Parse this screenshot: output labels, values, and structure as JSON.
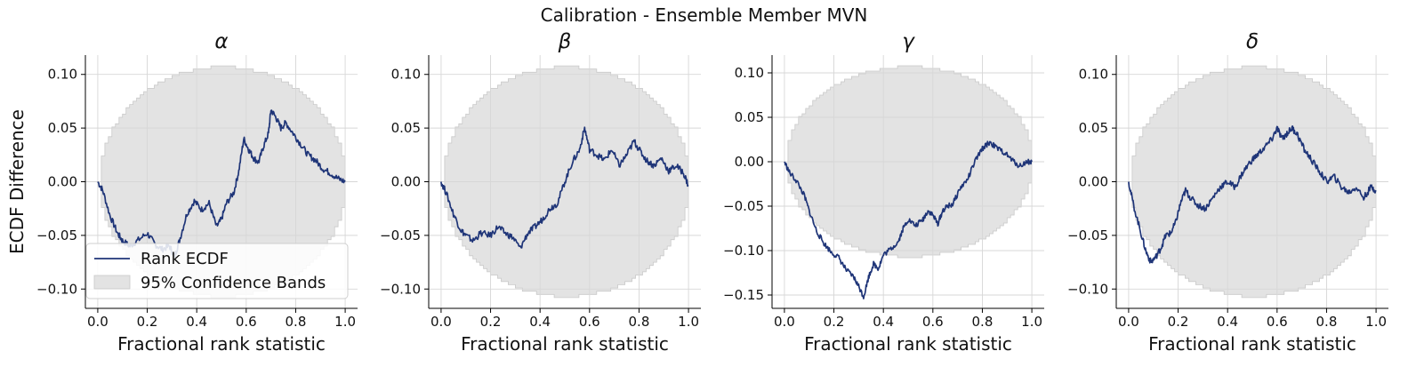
{
  "figure": {
    "suptitle": "Calibration - Ensemble Member MVN"
  },
  "colors": {
    "line": "#1f3578",
    "band": "#e3e3e3",
    "band_edge": "#c9c9c9",
    "grid": "#d7d7d7",
    "axis": "#000000"
  },
  "legend": {
    "line_label": "Rank ECDF",
    "band_label": "95% Confidence Bands"
  },
  "chart_data": [
    {
      "type": "line",
      "title": "α",
      "xlabel": "Fractional rank statistic",
      "ylabel": "ECDF Difference",
      "xlim": [
        -0.05,
        1.05
      ],
      "ylim": [
        -0.118,
        0.118
      ],
      "xticks": [
        0.0,
        0.2,
        0.4,
        0.6,
        0.8,
        1.0
      ],
      "yticks": [
        -0.1,
        -0.05,
        0.0,
        0.05,
        0.1
      ],
      "band_halfwidth_max": 0.107,
      "series": [
        {
          "name": "Rank ECDF",
          "x": [
            0.0,
            0.02,
            0.05,
            0.08,
            0.1,
            0.13,
            0.16,
            0.2,
            0.23,
            0.26,
            0.29,
            0.31,
            0.33,
            0.36,
            0.39,
            0.42,
            0.45,
            0.48,
            0.5,
            0.52,
            0.55,
            0.57,
            0.59,
            0.61,
            0.63,
            0.65,
            0.67,
            0.69,
            0.7,
            0.72,
            0.74,
            0.76,
            0.79,
            0.82,
            0.85,
            0.88,
            0.91,
            0.94,
            0.97,
            1.0
          ],
          "y": [
            0.0,
            -0.008,
            -0.032,
            -0.048,
            -0.055,
            -0.06,
            -0.055,
            -0.048,
            -0.058,
            -0.063,
            -0.06,
            -0.07,
            -0.055,
            -0.03,
            -0.018,
            -0.026,
            -0.02,
            -0.042,
            -0.035,
            -0.02,
            -0.01,
            0.01,
            0.04,
            0.03,
            0.022,
            0.018,
            0.033,
            0.045,
            0.067,
            0.06,
            0.05,
            0.055,
            0.045,
            0.035,
            0.025,
            0.02,
            0.012,
            0.008,
            0.003,
            0.0
          ]
        }
      ]
    },
    {
      "type": "line",
      "title": "β",
      "xlabel": "Fractional rank statistic",
      "ylabel": "",
      "xlim": [
        -0.05,
        1.05
      ],
      "ylim": [
        -0.118,
        0.118
      ],
      "xticks": [
        0.0,
        0.2,
        0.4,
        0.6,
        0.8,
        1.0
      ],
      "yticks": [
        -0.1,
        -0.05,
        0.0,
        0.05,
        0.1
      ],
      "band_halfwidth_max": 0.107,
      "series": [
        {
          "name": "Rank ECDF",
          "x": [
            0.0,
            0.02,
            0.05,
            0.08,
            0.1,
            0.13,
            0.16,
            0.2,
            0.23,
            0.26,
            0.29,
            0.32,
            0.35,
            0.38,
            0.41,
            0.44,
            0.47,
            0.5,
            0.53,
            0.56,
            0.58,
            0.6,
            0.63,
            0.66,
            0.69,
            0.72,
            0.75,
            0.78,
            0.8,
            0.83,
            0.86,
            0.89,
            0.92,
            0.95,
            0.98,
            1.0
          ],
          "y": [
            0.0,
            -0.01,
            -0.03,
            -0.045,
            -0.05,
            -0.055,
            -0.048,
            -0.05,
            -0.042,
            -0.048,
            -0.052,
            -0.062,
            -0.048,
            -0.042,
            -0.035,
            -0.025,
            -0.02,
            0.0,
            0.018,
            0.03,
            0.05,
            0.03,
            0.025,
            0.02,
            0.03,
            0.015,
            0.025,
            0.038,
            0.03,
            0.02,
            0.015,
            0.022,
            0.01,
            0.015,
            0.008,
            -0.004
          ]
        }
      ]
    },
    {
      "type": "line",
      "title": "γ",
      "xlabel": "Fractional rank statistic",
      "ylabel": "",
      "xlim": [
        -0.05,
        1.05
      ],
      "ylim": [
        -0.165,
        0.12
      ],
      "xticks": [
        0.0,
        0.2,
        0.4,
        0.6,
        0.8,
        1.0
      ],
      "yticks": [
        -0.15,
        -0.1,
        -0.05,
        0.0,
        0.05,
        0.1
      ],
      "band_halfwidth_max": 0.107,
      "series": [
        {
          "name": "Rank ECDF",
          "x": [
            0.0,
            0.02,
            0.05,
            0.08,
            0.1,
            0.13,
            0.16,
            0.19,
            0.22,
            0.25,
            0.28,
            0.3,
            0.32,
            0.34,
            0.36,
            0.38,
            0.4,
            0.43,
            0.46,
            0.48,
            0.5,
            0.53,
            0.56,
            0.58,
            0.6,
            0.62,
            0.64,
            0.66,
            0.68,
            0.71,
            0.74,
            0.77,
            0.8,
            0.83,
            0.86,
            0.89,
            0.92,
            0.95,
            0.98,
            1.0
          ],
          "y": [
            0.0,
            -0.012,
            -0.022,
            -0.038,
            -0.055,
            -0.078,
            -0.092,
            -0.102,
            -0.108,
            -0.122,
            -0.13,
            -0.14,
            -0.152,
            -0.13,
            -0.115,
            -0.12,
            -0.105,
            -0.098,
            -0.09,
            -0.075,
            -0.065,
            -0.072,
            -0.065,
            -0.055,
            -0.06,
            -0.07,
            -0.055,
            -0.05,
            -0.048,
            -0.03,
            -0.02,
            0.0,
            0.015,
            0.022,
            0.015,
            0.01,
            0.002,
            -0.005,
            0.0,
            0.0
          ]
        }
      ]
    },
    {
      "type": "line",
      "title": "δ",
      "xlabel": "Fractional rank statistic",
      "ylabel": "",
      "xlim": [
        -0.05,
        1.05
      ],
      "ylim": [
        -0.118,
        0.118
      ],
      "xticks": [
        0.0,
        0.2,
        0.4,
        0.6,
        0.8,
        1.0
      ],
      "yticks": [
        -0.1,
        -0.05,
        0.0,
        0.05,
        0.1
      ],
      "band_halfwidth_max": 0.107,
      "series": [
        {
          "name": "Rank ECDF",
          "x": [
            0.0,
            0.02,
            0.05,
            0.07,
            0.09,
            0.11,
            0.13,
            0.15,
            0.17,
            0.19,
            0.21,
            0.23,
            0.25,
            0.28,
            0.31,
            0.34,
            0.37,
            0.4,
            0.43,
            0.46,
            0.49,
            0.52,
            0.55,
            0.58,
            0.6,
            0.62,
            0.64,
            0.66,
            0.68,
            0.71,
            0.74,
            0.77,
            0.8,
            0.83,
            0.86,
            0.89,
            0.92,
            0.95,
            0.98,
            1.0
          ],
          "y": [
            0.0,
            -0.022,
            -0.048,
            -0.065,
            -0.075,
            -0.07,
            -0.062,
            -0.05,
            -0.048,
            -0.038,
            -0.02,
            -0.008,
            -0.015,
            -0.022,
            -0.025,
            -0.015,
            -0.005,
            0.0,
            -0.005,
            0.008,
            0.018,
            0.025,
            0.032,
            0.04,
            0.05,
            0.04,
            0.045,
            0.05,
            0.045,
            0.03,
            0.02,
            0.01,
            0.0,
            0.005,
            -0.005,
            -0.01,
            -0.005,
            -0.015,
            -0.005,
            -0.008
          ]
        }
      ]
    }
  ]
}
